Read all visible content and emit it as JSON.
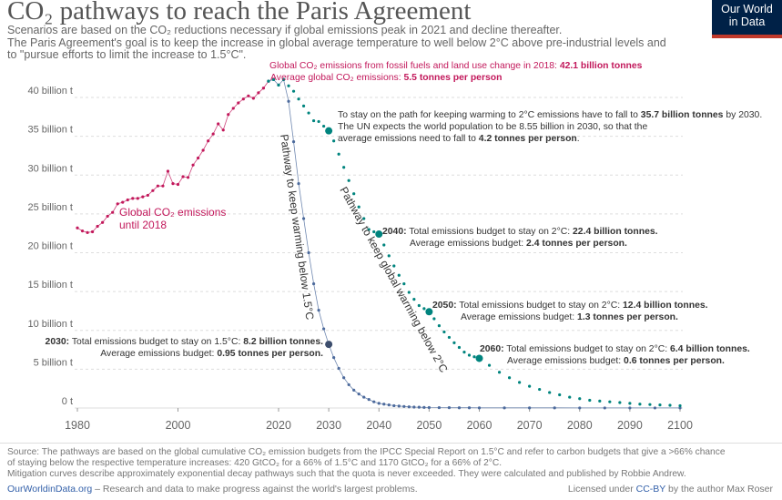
{
  "header": {
    "title": "CO₂ pathways to reach the Paris Agreement",
    "subtitle_1": "Scenarios are based on the CO₂ reductions necessary if global emissions peak in 2021 and decline thereafter.",
    "subtitle_2": "The Paris Agreement's goal is to keep the increase in global average temperature to well below 2°C above pre-industrial levels and",
    "subtitle_3": "to \"pursue efforts to limit the increase to 1.5°C\".",
    "logo_line1": "Our World",
    "logo_line2": "in Data"
  },
  "colors": {
    "historical": "#c2185b",
    "path_2c": "#00847e",
    "path_15c": "#4c6a9c",
    "marker_15c": "#3d4e6d",
    "grid": "#dddddd",
    "axis_text": "#666666",
    "logo_bg": "#002147",
    "logo_accent": "#c0392b"
  },
  "chart_data": {
    "type": "scatter",
    "xlim": [
      1980,
      2100
    ],
    "ylim": [
      0,
      42
    ],
    "x_ticks": [
      "1980",
      "2000",
      "2020",
      "2030",
      "2040",
      "2050",
      "2060",
      "2070",
      "2080",
      "2090",
      "2100"
    ],
    "x_tick_values": [
      1980,
      2000,
      2020,
      2030,
      2040,
      2050,
      2060,
      2070,
      2080,
      2090,
      2100
    ],
    "y_ticks": [
      "0 t",
      "5 billion t",
      "10 billion t",
      "15 billion t",
      "20 billion t",
      "25 billion t",
      "30 billion t",
      "35 billion t",
      "40 billion t"
    ],
    "y_tick_values": [
      0,
      5,
      10,
      15,
      20,
      25,
      30,
      35,
      40
    ],
    "grid": true,
    "historical": {
      "x": [
        1980,
        1981,
        1982,
        1983,
        1984,
        1985,
        1986,
        1987,
        1988,
        1989,
        1990,
        1991,
        1992,
        1993,
        1994,
        1995,
        1996,
        1997,
        1998,
        1999,
        2000,
        2001,
        2002,
        2003,
        2004,
        2005,
        2006,
        2007,
        2008,
        2009,
        2010,
        2011,
        2012,
        2013,
        2014,
        2015,
        2016,
        2017,
        2018
      ],
      "y": [
        23.2,
        22.8,
        22.6,
        22.7,
        23.4,
        23.9,
        24.7,
        25.2,
        26.3,
        26.5,
        26.8,
        27.0,
        27.0,
        27.2,
        27.4,
        28.0,
        28.6,
        28.6,
        30.5,
        28.9,
        28.8,
        29.8,
        29.7,
        31.3,
        32.2,
        33.2,
        34.4,
        35.3,
        36.6,
        35.8,
        37.8,
        38.6,
        39.3,
        39.8,
        40.2,
        39.9,
        40.6,
        41.2,
        42.1
      ]
    },
    "pathway_15c": {
      "x": [
        2018,
        2019,
        2020,
        2021,
        2022,
        2023,
        2024,
        2025,
        2026,
        2027,
        2028,
        2029,
        2030,
        2031,
        2032,
        2033,
        2034,
        2035,
        2036,
        2037,
        2038,
        2039,
        2040,
        2041,
        2042,
        2043,
        2044,
        2045,
        2046,
        2047,
        2048,
        2049,
        2050,
        2052,
        2054,
        2056,
        2058,
        2060,
        2065,
        2070,
        2075,
        2080,
        2085,
        2090,
        2095,
        2100
      ],
      "y": [
        42.1,
        42.3,
        41.6,
        42.3,
        39.5,
        34.3,
        28.9,
        24.4,
        20.0,
        16.0,
        12.6,
        10.2,
        8.2,
        6.5,
        5.1,
        3.9,
        3.0,
        2.3,
        1.8,
        1.4,
        1.1,
        0.8,
        0.6,
        0.5,
        0.4,
        0.3,
        0.25,
        0.2,
        0.15,
        0.12,
        0.1,
        0.08,
        0.06,
        0.05,
        0.04,
        0.03,
        0.03,
        0.02,
        0.02,
        0.02,
        0.02,
        0.01,
        0.01,
        0.01,
        0.01,
        0.01
      ]
    },
    "pathway_2c": {
      "x": [
        2018,
        2019,
        2020,
        2021,
        2022,
        2023,
        2024,
        2025,
        2026,
        2027,
        2028,
        2029,
        2030,
        2031,
        2032,
        2033,
        2034,
        2035,
        2036,
        2037,
        2038,
        2039,
        2040,
        2041,
        2042,
        2043,
        2044,
        2045,
        2046,
        2047,
        2048,
        2049,
        2050,
        2051,
        2052,
        2053,
        2054,
        2055,
        2056,
        2057,
        2058,
        2059,
        2060,
        2062,
        2064,
        2066,
        2068,
        2070,
        2072,
        2074,
        2076,
        2078,
        2080,
        2082,
        2084,
        2086,
        2088,
        2090,
        2092,
        2094,
        2096,
        2098,
        2100
      ],
      "y": [
        42.1,
        42.3,
        41.6,
        42.3,
        41.5,
        40.8,
        39.8,
        38.9,
        38.0,
        37.0,
        36.9,
        36.3,
        35.7,
        34.4,
        32.7,
        31.0,
        29.3,
        27.6,
        25.9,
        24.4,
        23.0,
        22.7,
        22.4,
        21.0,
        19.6,
        18.3,
        17.1,
        16.0,
        14.9,
        14.0,
        13.2,
        12.8,
        12.4,
        11.5,
        10.6,
        9.8,
        9.1,
        8.4,
        7.8,
        7.2,
        6.8,
        6.6,
        6.4,
        5.5,
        4.6,
        3.9,
        3.3,
        2.8,
        2.4,
        2.0,
        1.7,
        1.4,
        1.2,
        1.0,
        0.9,
        0.8,
        0.7,
        0.6,
        0.5,
        0.45,
        0.4,
        0.35,
        0.3
      ]
    },
    "highlights": [
      {
        "series": "pathway_2c",
        "x": 2030,
        "y": 35.7
      },
      {
        "series": "pathway_2c",
        "x": 2040,
        "y": 22.4
      },
      {
        "series": "pathway_2c",
        "x": 2050,
        "y": 12.4
      },
      {
        "series": "pathway_2c",
        "x": 2060,
        "y": 6.4
      },
      {
        "series": "pathway_15c",
        "x": 2030,
        "y": 8.2
      }
    ],
    "series_labels": {
      "historical_1": "Global CO₂ emissions",
      "historical_2": "until 2018",
      "pathway_15c": "Pathway to keep warming below 1.5°C",
      "pathway_2c": "Pathway to keep global warming below 2°C"
    },
    "annotations": {
      "peak_1a": "Global CO₂ emissions from fossil fuels and land use change in 2018: ",
      "peak_1b": "42.1 billion tonnes",
      "peak_2a": "Average global CO₂ emissions: ",
      "peak_2b": "5.5 tonnes per person",
      "a2030_1a": "To stay on the path for keeping warming to 2°C emissions have to fall to ",
      "a2030_1b": "35.7 billion tonnes",
      "a2030_1c": " by 2030.",
      "a2030_2": "The UN expects the world population to be 8.55 billion in 2030, so that the",
      "a2030_3a": "average emissions need to fall to ",
      "a2030_3b": "4.2 tonnes per person",
      "a2030_3c": ".",
      "a2040_1a": "2040:",
      "a2040_1b": " Total emissions budget to stay on 2°C: ",
      "a2040_1c": "22.4 billion tonnes.",
      "a2040_2a": "Average emissions budget: ",
      "a2040_2b": "2.4 tonnes per person.",
      "a2050_1a": "2050:",
      "a2050_1b": " Total emissions budget to stay on 2°C: ",
      "a2050_1c": "12.4 billion tonnes.",
      "a2050_2a": "Average emissions budget: ",
      "a2050_2b": "1.3 tonnes per person.",
      "a2060_1a": "2060:",
      "a2060_1b": " Total emissions budget to stay on 2°C: ",
      "a2060_1c": "6.4 billion tonnes.",
      "a2060_2a": "Average emissions budget: ",
      "a2060_2b": "0.6 tonnes per person.",
      "a15_1a": "2030:",
      "a15_1b": " Total emissions budget to stay on 1.5°C: ",
      "a15_1c": "8.2 billion tonnes.",
      "a15_2a": "Average emissions budget: ",
      "a15_2b": "0.95 tonnes per person."
    }
  },
  "footer": {
    "source_1": "Source: The pathways are based on the global cumulative CO₂ emission budgets from the IPCC Special Report on 1.5°C and refer to carbon budgets that give a >66% chance",
    "source_2": "of staying below the respective temperature increases: 420 GtCO₂ for a 66% of 1.5°C and 1170 GtCO₂ for a 66% of 2°C.",
    "source_3": "Mitigation curves describe approximately exponential decay pathways such that the quota is never exceeded. They were calculated and published by Robbie Andrew.",
    "owid_link": "OurWorldinData.org",
    "owid_tagline": " – Research and data to make progress against the world's largest problems.",
    "license_prefix": "Licensed under ",
    "license_link": "CC-BY",
    "license_suffix": " by the author Max Roser"
  }
}
